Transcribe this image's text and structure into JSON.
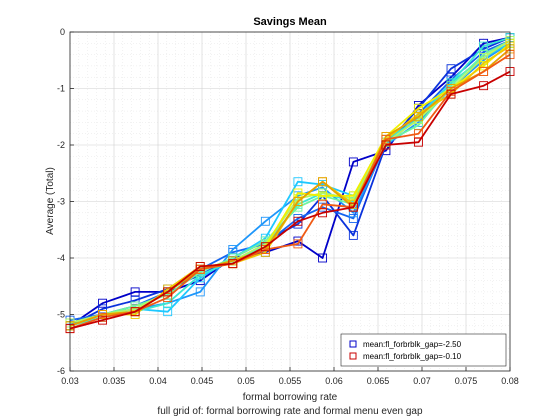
{
  "figure": {
    "title": "Savings Mean",
    "xlabel": "formal borrowing rate",
    "ylabel": "Average (Total)",
    "footer": "full grid of: formal borrowing rate and formal menu even gap"
  },
  "chart_data": {
    "type": "line",
    "title": "Savings Mean",
    "xlabel": "formal borrowing rate",
    "ylabel": "Average (Total)",
    "xlim": [
      0.03,
      0.08
    ],
    "ylim": [
      -6,
      0
    ],
    "xticks": [
      0.03,
      0.035,
      0.04,
      0.045,
      0.05,
      0.055,
      0.06,
      0.065,
      0.07,
      0.075,
      0.08
    ],
    "xtick_labels": [
      "0.03",
      "0.035",
      "0.04",
      "0.045",
      "0.05",
      "0.055",
      "0.06",
      "0.065",
      "0.07",
      "0.075",
      "0.08"
    ],
    "yticks": [
      -6,
      -5,
      -4,
      -3,
      -2,
      -1,
      0
    ],
    "ytick_labels": [
      "-6",
      "-5",
      "-4",
      "-3",
      "-2",
      "-1",
      "0"
    ],
    "grid": true,
    "minor_grid": true,
    "legend_position": "bottom-right",
    "marker_x": [
      0.03,
      0.0337,
      0.0374,
      0.0411,
      0.0448,
      0.0485,
      0.0522,
      0.0559,
      0.0587,
      0.0622,
      0.0659,
      0.0696,
      0.0733,
      0.077,
      0.08
    ],
    "series": [
      {
        "name": "mean:fl_forbrblk_gap=-2.50",
        "color": "#0000c8",
        "in_legend": true,
        "values": [
          -5.2,
          -4.8,
          -4.6,
          -4.6,
          -4.4,
          -4.0,
          -3.9,
          -3.7,
          -4.0,
          -2.3,
          -2.1,
          -1.3,
          -0.8,
          -0.2,
          -0.1
        ]
      },
      {
        "name": "",
        "color": "#0a32dc",
        "in_legend": false,
        "values": [
          -5.2,
          -4.9,
          -4.75,
          -4.55,
          -4.3,
          -4.0,
          -3.7,
          -3.4,
          -2.9,
          -3.6,
          -2.0,
          -1.35,
          -0.65,
          -0.3,
          -0.1
        ]
      },
      {
        "name": "",
        "color": "#1464f0",
        "in_legend": false,
        "values": [
          -5.1,
          -5.0,
          -4.85,
          -4.6,
          -4.2,
          -3.9,
          -3.75,
          -3.3,
          -3.1,
          -3.3,
          -1.95,
          -1.45,
          -0.85,
          -0.35,
          -0.15
        ]
      },
      {
        "name": "",
        "color": "#1e96fa",
        "in_legend": false,
        "values": [
          -5.2,
          -5.0,
          -4.9,
          -4.8,
          -4.6,
          -3.85,
          -3.35,
          -2.9,
          -2.75,
          -3.2,
          -2.0,
          -1.6,
          -1.0,
          -0.5,
          -0.2
        ]
      },
      {
        "name": "",
        "color": "#1ec8ff",
        "in_legend": false,
        "values": [
          -5.2,
          -5.0,
          -4.9,
          -4.95,
          -4.35,
          -4.0,
          -3.65,
          -2.65,
          -2.7,
          -2.9,
          -2.0,
          -1.5,
          -0.9,
          -0.45,
          -0.2
        ]
      },
      {
        "name": "",
        "color": "#3ce6d2",
        "in_legend": false,
        "values": [
          -5.2,
          -5.05,
          -4.95,
          -4.8,
          -4.3,
          -4.05,
          -3.8,
          -3.05,
          -2.85,
          -3.0,
          -1.9,
          -1.55,
          -0.9,
          -0.25,
          -0.1
        ]
      },
      {
        "name": "",
        "color": "#6ef5a0",
        "in_legend": false,
        "values": [
          -5.15,
          -5.0,
          -4.85,
          -4.65,
          -4.25,
          -4.0,
          -3.7,
          -3.1,
          -2.9,
          -3.05,
          -1.95,
          -1.65,
          -0.95,
          -0.4,
          -0.15
        ]
      },
      {
        "name": "",
        "color": "#b4f564",
        "in_legend": false,
        "values": [
          -5.15,
          -5.0,
          -4.9,
          -4.6,
          -4.2,
          -4.05,
          -3.75,
          -2.95,
          -2.85,
          -2.95,
          -1.95,
          -1.55,
          -1.0,
          -0.45,
          -0.15
        ]
      },
      {
        "name": "",
        "color": "#f0f000",
        "in_legend": false,
        "values": [
          -5.2,
          -5.0,
          -4.95,
          -4.6,
          -4.2,
          -4.1,
          -3.8,
          -2.85,
          -2.9,
          -2.9,
          -1.85,
          -1.35,
          -1.0,
          -0.6,
          -0.2
        ]
      },
      {
        "name": "",
        "color": "#f0c800",
        "in_legend": false,
        "values": [
          -5.2,
          -5.0,
          -5.0,
          -4.55,
          -4.15,
          -4.1,
          -3.9,
          -3.0,
          -2.65,
          -3.05,
          -1.9,
          -1.45,
          -1.1,
          -0.55,
          -0.25
        ]
      },
      {
        "name": "",
        "color": "#e6a000",
        "in_legend": false,
        "values": [
          -5.2,
          -5.0,
          -4.95,
          -4.6,
          -4.2,
          -4.05,
          -3.85,
          -3.0,
          -2.65,
          -3.1,
          -1.85,
          -1.5,
          -1.0,
          -0.7,
          -0.3
        ]
      },
      {
        "name": "",
        "color": "#f05a14",
        "in_legend": false,
        "values": [
          -5.25,
          -5.05,
          -4.95,
          -4.7,
          -4.2,
          -4.1,
          -3.85,
          -3.75,
          -3.05,
          -3.1,
          -1.9,
          -1.8,
          -1.05,
          -0.7,
          -0.4
        ]
      },
      {
        "name": "mean:fl_forbrblk_gap=-0.10",
        "color": "#c80000",
        "in_legend": true,
        "values": [
          -5.25,
          -5.1,
          -4.95,
          -4.6,
          -4.15,
          -4.1,
          -3.8,
          -3.35,
          -3.2,
          -3.1,
          -2.0,
          -1.95,
          -1.1,
          -0.95,
          -0.7
        ]
      }
    ]
  }
}
